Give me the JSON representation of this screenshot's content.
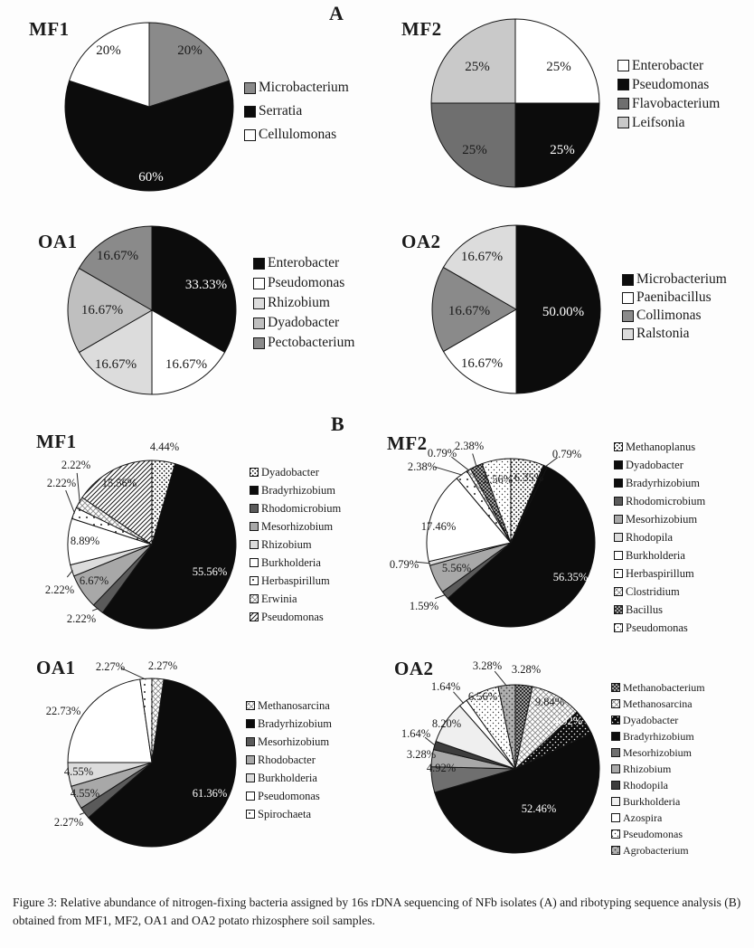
{
  "section_a_label": "A",
  "section_b_label": "B",
  "caption": "Figure 3: Relative abundance of nitrogen-fixing bacteria assigned by 16s rDNA sequencing of NFb isolates (A) and ribotyping sequence analysis (B) obtained from MF1, MF2, OA1 and OA2 potato rhizosphere soil samples.",
  "colors": {
    "black": "#0c0c0c",
    "white": "#ffffff",
    "gray-darkest": "#3d3d3d",
    "gray-dark": "#5a5a5a",
    "gray-dim": "#6f6f6f",
    "gray": "#8a8a8a",
    "gray-soft": "#a8a8a8",
    "gray-lighter": "#bfbfbf",
    "gray-light": "#c9c9c9",
    "gray-pale": "#dcdcdc",
    "gray-faint": "#efefef"
  },
  "chart_data": [
    {
      "id": "a_mf1",
      "section": "A",
      "type": "pie",
      "title": "MF1",
      "legend_position": "right",
      "slices": [
        {
          "name": "Microbacterium",
          "value": 20,
          "label": "20%",
          "fill": "gray",
          "label_offset": [
            45,
            -62
          ]
        },
        {
          "name": "Serratia",
          "value": 60,
          "label": "60%",
          "fill": "black",
          "label_offset": [
            2,
            78
          ],
          "label_color": "#ffffff"
        },
        {
          "name": "Cellulomonas",
          "value": 20,
          "label": "20%",
          "fill": "white",
          "label_offset": [
            -45,
            -62
          ]
        }
      ]
    },
    {
      "id": "a_mf2",
      "section": "A",
      "type": "pie",
      "title": "MF2",
      "legend_position": "right",
      "slices": [
        {
          "name": "Enterobacter",
          "value": 25,
          "label": "25%",
          "fill": "white",
          "label_offset": [
            48,
            -40
          ]
        },
        {
          "name": "Pseudomonas",
          "value": 25,
          "label": "25%",
          "fill": "black",
          "label_offset": [
            52,
            52
          ],
          "label_color": "#ffffff"
        },
        {
          "name": "Flavobacterium",
          "value": 25,
          "label": "25%",
          "fill": "gray-dim",
          "label_offset": [
            -45,
            52
          ]
        },
        {
          "name": "Leifsonia",
          "value": 25,
          "label": "25%",
          "fill": "gray-light",
          "label_offset": [
            -42,
            -40
          ]
        }
      ]
    },
    {
      "id": "a_oa1",
      "section": "A",
      "type": "pie",
      "title": "OA1",
      "legend_position": "right",
      "slices": [
        {
          "name": "Enterobacter",
          "value": 33.33,
          "label": "33.33%",
          "fill": "black",
          "label_offset": [
            60,
            -28
          ],
          "label_color": "#ffffff"
        },
        {
          "name": "Pseudomonas",
          "value": 16.67,
          "label": "16.67%",
          "fill": "white",
          "label_offset": [
            38,
            60
          ]
        },
        {
          "name": "Rhizobium",
          "value": 16.67,
          "label": "16.67%",
          "fill": "gray-pale",
          "label_offset": [
            -40,
            60
          ]
        },
        {
          "name": "Dyadobacter",
          "value": 16.67,
          "label": "16.67%",
          "fill": "gray-lighter",
          "label_offset": [
            -55,
            0
          ]
        },
        {
          "name": "Pectobacterium",
          "value": 16.67,
          "label": "16.67%",
          "fill": "gray",
          "label_offset": [
            -38,
            -60
          ]
        }
      ]
    },
    {
      "id": "a_oa2",
      "section": "A",
      "type": "pie",
      "title": "OA2",
      "legend_position": "right",
      "slices": [
        {
          "name": "Microbacterium",
          "value": 50,
          "label": "50.00%",
          "fill": "black",
          "label_offset": [
            52,
            3
          ],
          "label_color": "#ffffff"
        },
        {
          "name": "Paenibacillus",
          "value": 16.67,
          "label": "16.67%",
          "fill": "white",
          "label_offset": [
            -38,
            60
          ]
        },
        {
          "name": "Collimonas",
          "value": 16.67,
          "label": "16.67%",
          "fill": "gray",
          "label_offset": [
            -52,
            2
          ]
        },
        {
          "name": "Ralstonia",
          "value": 16.67,
          "label": "16.67%",
          "fill": "gray-pale",
          "label_offset": [
            -38,
            -58
          ]
        }
      ]
    },
    {
      "id": "b_mf1",
      "section": "B",
      "type": "pie",
      "title": "MF1",
      "legend_position": "right",
      "slices": [
        {
          "name": "Dyadobacter",
          "value": 4.44,
          "label": "4.44%",
          "fill": "dots",
          "label_offset": [
            14,
            -108
          ]
        },
        {
          "name": "Bradyrhizobium",
          "value": 55.56,
          "label": "55.56%",
          "fill": "black",
          "label_offset": [
            64,
            30
          ],
          "label_color": "#ffffff"
        },
        {
          "name": "Rhodomicrobium",
          "value": 2.22,
          "label": "2.22%",
          "fill": "gray-dark",
          "label_offset": [
            -78,
            82
          ],
          "leader": true
        },
        {
          "name": "Mesorhizobium",
          "value": 6.67,
          "label": "6.67%",
          "fill": "gray-soft",
          "label_offset": [
            -64,
            40
          ]
        },
        {
          "name": "Rhizobium",
          "value": 2.22,
          "label": "2.22%",
          "fill": "gray-pale",
          "label_offset": [
            -102,
            50
          ],
          "leader": true
        },
        {
          "name": "Burkholderia",
          "value": 8.89,
          "label": "8.89%",
          "fill": "white",
          "label_offset": [
            -74,
            -4
          ]
        },
        {
          "name": "Herbaspirillum",
          "value": 2.22,
          "label": "2.22%",
          "fill": "dots-sparse",
          "label_offset": [
            -100,
            -68
          ],
          "leader": true
        },
        {
          "name": "Erwinia",
          "value": 2.22,
          "label": "2.22%",
          "fill": "cross-light",
          "label_offset": [
            -84,
            -88
          ],
          "leader": true
        },
        {
          "name": "Pseudomonas",
          "value": 15.56,
          "label": "15.56%",
          "fill": "hatch",
          "label_offset": [
            -36,
            -68
          ]
        }
      ]
    },
    {
      "id": "b_mf2",
      "section": "B",
      "type": "pie",
      "title": "MF2",
      "legend_position": "right",
      "slices": [
        {
          "name": "Methanoplanus",
          "value": 6.35,
          "label": "6.35%",
          "fill": "dots",
          "label_offset": [
            20,
            -72
          ]
        },
        {
          "name": "Dyadobacter",
          "value": 0.79,
          "label": "0.79%",
          "fill": "black",
          "label_offset": [
            62,
            -98
          ],
          "leader": true
        },
        {
          "name": "Bradyrhizobium",
          "value": 56.35,
          "label": "56.35%",
          "fill": "black",
          "label_offset": [
            66,
            38
          ],
          "label_color": "#ffffff"
        },
        {
          "name": "Rhodomicrobium",
          "value": 1.59,
          "label": "1.59%",
          "fill": "gray-dark",
          "label_offset": [
            -96,
            70
          ],
          "leader": true
        },
        {
          "name": "Mesorhizobium",
          "value": 5.56,
          "label": "5.56%",
          "fill": "gray-soft",
          "label_offset": [
            -60,
            28
          ]
        },
        {
          "name": "Rhodopila",
          "value": 0.79,
          "label": "0.79%",
          "fill": "gray-pale",
          "label_offset": [
            -118,
            24
          ],
          "leader": true
        },
        {
          "name": "Burkholderia",
          "value": 17.46,
          "label": "17.46%",
          "fill": "white",
          "label_offset": [
            -80,
            -18
          ]
        },
        {
          "name": "Herbaspirillum",
          "value": 2.38,
          "label": "2.38%",
          "fill": "dots-sparse",
          "label_offset": [
            -98,
            -84
          ],
          "leader": true
        },
        {
          "name": "Clostridium",
          "value": 0.79,
          "label": "0.79%",
          "fill": "cross-light",
          "label_offset": [
            -76,
            -99
          ],
          "leader": true
        },
        {
          "name": "Bacillus",
          "value": 2.38,
          "label": "2.38%",
          "fill": "cross-dark",
          "label_offset": [
            -46,
            -107
          ],
          "leader": true
        },
        {
          "name": "Pseudomonas",
          "value": 5.56,
          "label": "5.56%",
          "fill": "dots-light",
          "label_offset": [
            -14,
            -70
          ]
        }
      ]
    },
    {
      "id": "b_oa1",
      "section": "B",
      "type": "pie",
      "title": "OA1",
      "legend_position": "right",
      "slices": [
        {
          "name": "Methanosarcina",
          "value": 2.27,
          "label": "2.27%",
          "fill": "cross-light",
          "label_offset": [
            12,
            -107
          ]
        },
        {
          "name": "Bradyrhizobium",
          "value": 61.36,
          "label": "61.36%",
          "fill": "black",
          "label_offset": [
            64,
            34
          ],
          "label_color": "#ffffff"
        },
        {
          "name": "Mesorhizobium",
          "value": 2.27,
          "label": "2.27%",
          "fill": "gray-dark",
          "label_offset": [
            -92,
            66
          ],
          "leader": true
        },
        {
          "name": "Rhodobacter",
          "value": 4.55,
          "label": "4.55%",
          "fill": "gray-soft",
          "label_offset": [
            -74,
            34
          ]
        },
        {
          "name": "Burkholderia",
          "value": 4.55,
          "label": "4.55%",
          "fill": "gray-pale",
          "label_offset": [
            -81,
            10
          ]
        },
        {
          "name": "Pseudomonas",
          "value": 22.73,
          "label": "22.73%",
          "fill": "white",
          "label_offset": [
            -98,
            -57
          ]
        },
        {
          "name": "Spirochaeta",
          "value": 2.27,
          "label": "2.27%",
          "fill": "dots-sparse",
          "label_offset": [
            -46,
            -106
          ],
          "leader": true
        }
      ]
    },
    {
      "id": "b_oa2",
      "section": "B",
      "type": "pie",
      "title": "OA2",
      "legend_position": "right",
      "slices": [
        {
          "name": "Methanobacterium",
          "value": 3.28,
          "label": "3.28%",
          "fill": "cross-dark",
          "label_offset": [
            12,
            -110
          ]
        },
        {
          "name": "Methanosarcina",
          "value": 9.84,
          "label": "9.84%",
          "fill": "cross-light",
          "label_offset": [
            38,
            -74
          ]
        },
        {
          "name": "Dyadobacter",
          "value": 4.92,
          "label": "4.92%",
          "fill": "black-speckle",
          "label_offset": [
            58,
            -53
          ],
          "label_color": "#ffffff"
        },
        {
          "name": "Bradyrhizobium",
          "value": 52.46,
          "label": "52.46%",
          "fill": "black",
          "label_offset": [
            26,
            44
          ],
          "label_color": "#ffffff"
        },
        {
          "name": "Mesorhizobium",
          "value": 4.92,
          "label": "4.92%",
          "fill": "gray-dim",
          "label_offset": [
            -82,
            -1
          ]
        },
        {
          "name": "Rhizobium",
          "value": 3.28,
          "label": "3.28%",
          "fill": "gray-soft",
          "label_offset": [
            -104,
            -16
          ]
        },
        {
          "name": "Rhodopila",
          "value": 1.64,
          "label": "1.64%",
          "fill": "gray-darkest",
          "label_offset": [
            -110,
            -39
          ],
          "leader": true
        },
        {
          "name": "Burkholderia",
          "value": 8.2,
          "label": "8.20%",
          "fill": "gray-faint",
          "label_offset": [
            -76,
            -50
          ]
        },
        {
          "name": "Azospira",
          "value": 1.64,
          "label": "1.64%",
          "fill": "white",
          "label_offset": [
            -77,
            -91
          ],
          "leader": true
        },
        {
          "name": "Pseudomonas",
          "value": 6.56,
          "label": "6.56%",
          "fill": "dots-light",
          "label_offset": [
            -36,
            -80
          ]
        },
        {
          "name": "Agrobacterium",
          "value": 3.28,
          "label": "3.28%",
          "fill": "gray-dots",
          "label_offset": [
            -31,
            -114
          ],
          "leader": true
        }
      ]
    }
  ]
}
